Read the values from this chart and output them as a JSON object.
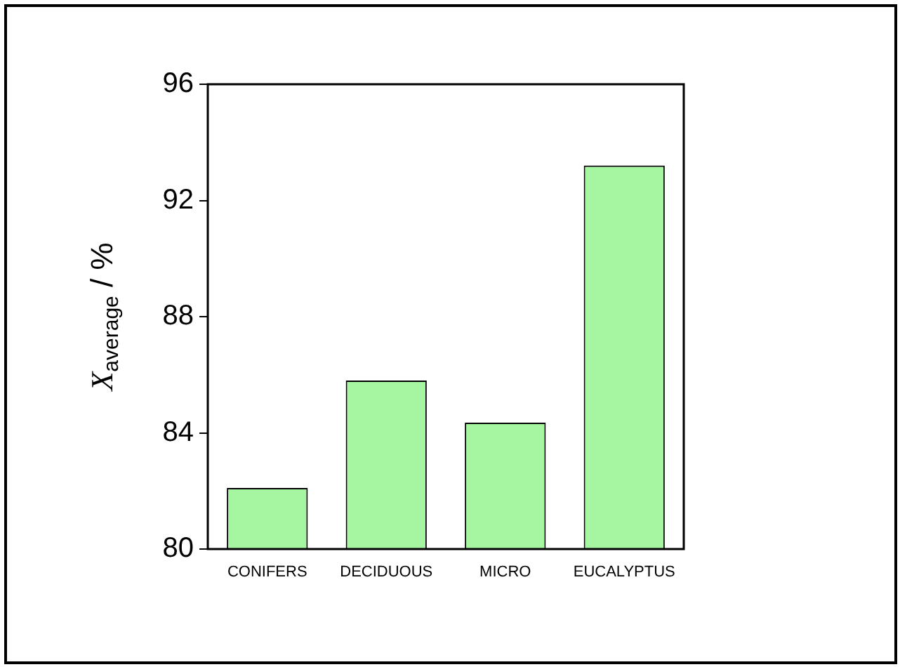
{
  "chart_data": {
    "type": "bar",
    "ylabel": "X$_{average}$ / %",
    "categories": [
      "CONIFERS",
      "DECIDUOUS",
      "MICRO",
      "EUCALYPTUS"
    ],
    "values": [
      82.1,
      85.8,
      84.35,
      93.2
    ],
    "color": "#a6f5a0",
    "ylim": [
      80,
      96
    ],
    "yticks": [
      80,
      84,
      88,
      92,
      96
    ],
    "grid": false,
    "legend": false
  }
}
